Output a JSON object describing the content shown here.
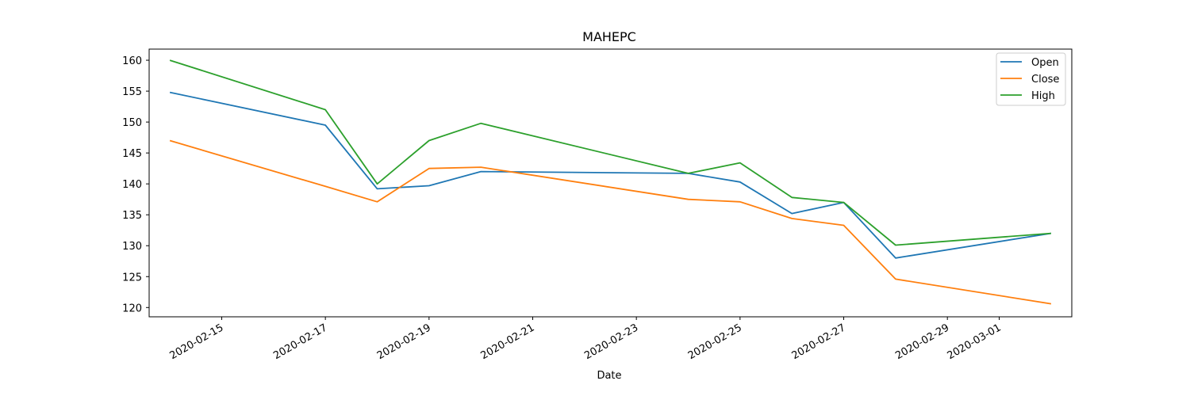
{
  "chart_data": {
    "type": "line",
    "title": "MAHEPC",
    "xlabel": "Date",
    "ylabel": "",
    "x_ticks": [
      "2020-02-15",
      "2020-02-17",
      "2020-02-19",
      "2020-02-21",
      "2020-02-23",
      "2020-02-25",
      "2020-02-27",
      "2020-02-29",
      "2020-03-01"
    ],
    "y_ticks": [
      120,
      125,
      130,
      135,
      140,
      145,
      150,
      155,
      160
    ],
    "xlim": [
      "2020-02-13",
      "2020-03-03"
    ],
    "ylim": [
      118.5,
      161.8
    ],
    "x": [
      "2020-02-14",
      "2020-02-17",
      "2020-02-18",
      "2020-02-19",
      "2020-02-20",
      "2020-02-24",
      "2020-02-25",
      "2020-02-26",
      "2020-02-27",
      "2020-02-28",
      "2020-03-02"
    ],
    "series": [
      {
        "name": "Open",
        "color": "#1f77b4",
        "values": [
          154.8,
          149.5,
          139.2,
          139.7,
          142.0,
          141.7,
          140.3,
          135.2,
          137.0,
          128.0,
          132.0
        ]
      },
      {
        "name": "Close",
        "color": "#ff7f0e",
        "values": [
          147.0,
          139.6,
          137.1,
          142.5,
          142.7,
          137.5,
          137.1,
          134.4,
          133.3,
          124.6,
          120.6
        ]
      },
      {
        "name": "High",
        "color": "#2ca02c",
        "values": [
          160.0,
          152.0,
          140.0,
          147.0,
          149.8,
          141.7,
          143.4,
          137.8,
          137.0,
          130.1,
          132.0
        ]
      }
    ],
    "grid": false,
    "legend_position": "top-right"
  }
}
